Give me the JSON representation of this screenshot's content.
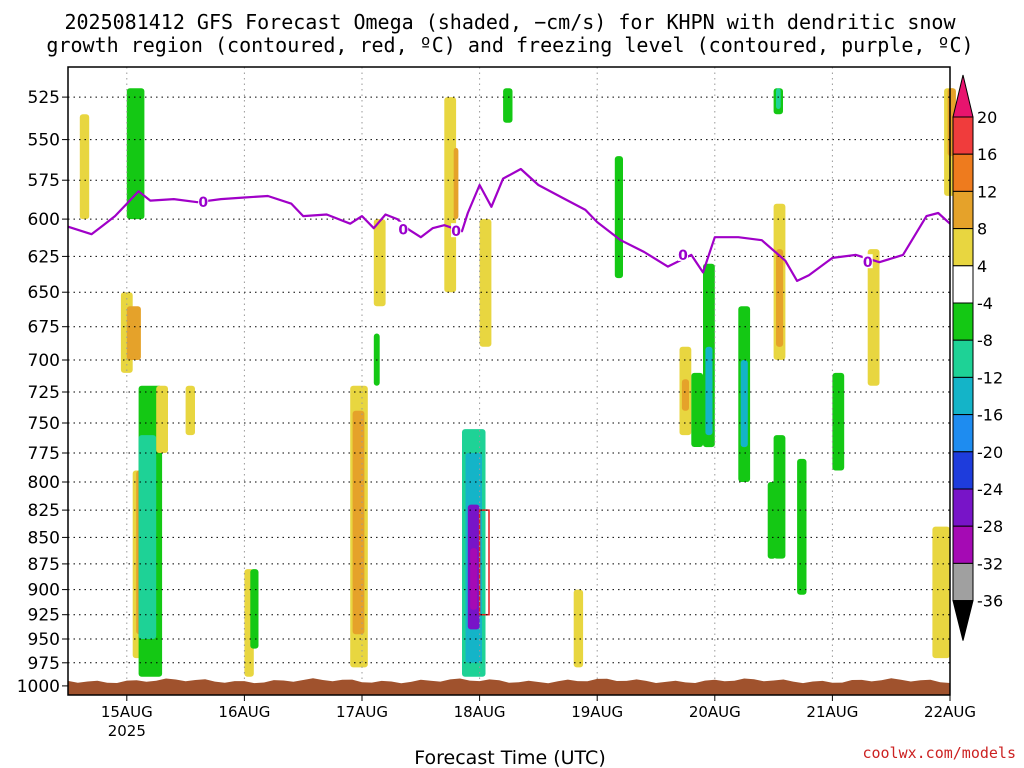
{
  "chart_data": {
    "type": "heatmap",
    "title": {
      "line1": "2025081412 GFS Forecast Omega (shaded, −cm/s) for KHPN with dendritic snow",
      "line2": "growth region (contoured, red, ºC) and freezing level (contoured, purple, ºC)"
    },
    "xlabel": "Forecast Time (UTC)",
    "credit": "coolwx.com/models",
    "x_ticks": [
      "15AUG",
      "16AUG",
      "17AUG",
      "18AUG",
      "19AUG",
      "20AUG",
      "21AUG",
      "22AUG"
    ],
    "x_year": "2025",
    "y_ticks": [
      "525",
      "550",
      "575",
      "600",
      "625",
      "650",
      "675",
      "700",
      "725",
      "750",
      "775",
      "800",
      "825",
      "850",
      "875",
      "900",
      "925",
      "950",
      "975",
      "1000"
    ],
    "y_unit": "hPa",
    "grid": true,
    "colorbar": {
      "labels": [
        "20",
        "16",
        "12",
        "8",
        "4",
        "-4",
        "-8",
        "-12",
        "-16",
        "-20",
        "-24",
        "-28",
        "-32",
        "-36"
      ],
      "colors": [
        "#e8146e",
        "#f03c3c",
        "#ee7b1e",
        "#e5a22a",
        "#e8d640",
        "#ffffff",
        "#14c814",
        "#1ed296",
        "#14b4c8",
        "#1e8cf0",
        "#1e3cdc",
        "#7814c8",
        "#a50ab4",
        "#a0a0a0",
        "#000000"
      ]
    },
    "freezing_level": {
      "label": "0",
      "color": "#a000c8",
      "points": [
        [
          14.5,
          605
        ],
        [
          14.7,
          610
        ],
        [
          14.8,
          604
        ],
        [
          14.9,
          598
        ],
        [
          15.0,
          590
        ],
        [
          15.1,
          582
        ],
        [
          15.2,
          588
        ],
        [
          15.4,
          587
        ],
        [
          15.6,
          589
        ],
        [
          15.8,
          587
        ],
        [
          16.0,
          586
        ],
        [
          16.2,
          585
        ],
        [
          16.4,
          590
        ],
        [
          16.5,
          598
        ],
        [
          16.7,
          597
        ],
        [
          16.9,
          603
        ],
        [
          17.0,
          598
        ],
        [
          17.1,
          606
        ],
        [
          17.2,
          597
        ],
        [
          17.3,
          600
        ],
        [
          17.4,
          607
        ],
        [
          17.5,
          612
        ],
        [
          17.6,
          606
        ],
        [
          17.7,
          604
        ],
        [
          17.85,
          608
        ],
        [
          17.9,
          596
        ],
        [
          18.0,
          578
        ],
        [
          18.1,
          592
        ],
        [
          18.2,
          574
        ],
        [
          18.35,
          568
        ],
        [
          18.5,
          578
        ],
        [
          18.7,
          586
        ],
        [
          18.9,
          594
        ],
        [
          19.0,
          602
        ],
        [
          19.2,
          614
        ],
        [
          19.4,
          622
        ],
        [
          19.6,
          632
        ],
        [
          19.8,
          624
        ],
        [
          19.9,
          636
        ],
        [
          20.0,
          612
        ],
        [
          20.2,
          612
        ],
        [
          20.4,
          614
        ],
        [
          20.6,
          628
        ],
        [
          20.7,
          642
        ],
        [
          20.8,
          638
        ],
        [
          21.0,
          626
        ],
        [
          21.2,
          624
        ],
        [
          21.4,
          629
        ],
        [
          21.6,
          624
        ],
        [
          21.8,
          598
        ],
        [
          21.9,
          596
        ],
        [
          22.0,
          603
        ]
      ]
    },
    "dendritic_zone": {
      "color": "#e02020",
      "segments": [
        [
          18.0,
          18.08,
          825,
          925
        ]
      ]
    },
    "omega_cells": [
      {
        "t0": 14.6,
        "t1": 14.68,
        "p0": 535,
        "p1": 600,
        "v": 5
      },
      {
        "t0": 14.95,
        "t1": 15.05,
        "p0": 650,
        "p1": 710,
        "v": 6
      },
      {
        "t0": 15.0,
        "t1": 15.12,
        "p0": 660,
        "p1": 700,
        "v": 9
      },
      {
        "t0": 15.0,
        "t1": 15.15,
        "p0": 520,
        "p1": 600,
        "v": -6
      },
      {
        "t0": 15.05,
        "t1": 15.13,
        "p0": 790,
        "p1": 970,
        "v": 6
      },
      {
        "t0": 15.08,
        "t1": 15.2,
        "p0": 790,
        "p1": 945,
        "v": 10
      },
      {
        "t0": 15.1,
        "t1": 15.3,
        "p0": 720,
        "p1": 990,
        "v": -7
      },
      {
        "t0": 15.1,
        "t1": 15.25,
        "p0": 760,
        "p1": 950,
        "v": -11
      },
      {
        "t0": 15.25,
        "t1": 15.35,
        "p0": 720,
        "p1": 775,
        "v": 5
      },
      {
        "t0": 15.5,
        "t1": 15.58,
        "p0": 720,
        "p1": 760,
        "v": 5
      },
      {
        "t0": 16.0,
        "t1": 16.08,
        "p0": 880,
        "p1": 990,
        "v": 5
      },
      {
        "t0": 16.05,
        "t1": 16.12,
        "p0": 880,
        "p1": 960,
        "v": -6
      },
      {
        "t0": 16.9,
        "t1": 17.05,
        "p0": 720,
        "p1": 980,
        "v": 6
      },
      {
        "t0": 16.92,
        "t1": 17.02,
        "p0": 740,
        "p1": 945,
        "v": 10
      },
      {
        "t0": 17.1,
        "t1": 17.15,
        "p0": 680,
        "p1": 720,
        "v": -6
      },
      {
        "t0": 17.1,
        "t1": 17.2,
        "p0": 600,
        "p1": 660,
        "v": 5
      },
      {
        "t0": 17.85,
        "t1": 18.05,
        "p0": 755,
        "p1": 990,
        "v": -8
      },
      {
        "t0": 17.88,
        "t1": 18.02,
        "p0": 775,
        "p1": 975,
        "v": -15
      },
      {
        "t0": 17.9,
        "t1": 18.0,
        "p0": 820,
        "p1": 940,
        "v": -24
      },
      {
        "t0": 17.92,
        "t1": 17.98,
        "p0": 860,
        "p1": 920,
        "v": -30
      },
      {
        "t0": 17.7,
        "t1": 17.8,
        "p0": 525,
        "p1": 650,
        "v": 6
      },
      {
        "t0": 17.78,
        "t1": 17.82,
        "p0": 555,
        "p1": 600,
        "v": 10
      },
      {
        "t0": 18.0,
        "t1": 18.1,
        "p0": 600,
        "p1": 690,
        "v": 5
      },
      {
        "t0": 18.2,
        "t1": 18.28,
        "p0": 520,
        "p1": 540,
        "v": -6
      },
      {
        "t0": 18.8,
        "t1": 18.88,
        "p0": 900,
        "p1": 980,
        "v": 5
      },
      {
        "t0": 19.15,
        "t1": 19.22,
        "p0": 560,
        "p1": 640,
        "v": -6
      },
      {
        "t0": 19.7,
        "t1": 19.8,
        "p0": 690,
        "p1": 760,
        "v": 5
      },
      {
        "t0": 19.72,
        "t1": 19.78,
        "p0": 715,
        "p1": 740,
        "v": 10
      },
      {
        "t0": 19.8,
        "t1": 19.9,
        "p0": 710,
        "p1": 770,
        "v": -6
      },
      {
        "t0": 19.9,
        "t1": 20.0,
        "p0": 630,
        "p1": 770,
        "v": -7
      },
      {
        "t0": 19.92,
        "t1": 19.98,
        "p0": 690,
        "p1": 760,
        "v": -12
      },
      {
        "t0": 20.2,
        "t1": 20.3,
        "p0": 660,
        "p1": 800,
        "v": -7
      },
      {
        "t0": 20.22,
        "t1": 20.28,
        "p0": 700,
        "p1": 770,
        "v": -12
      },
      {
        "t0": 20.5,
        "t1": 20.6,
        "p0": 590,
        "p1": 700,
        "v": 5
      },
      {
        "t0": 20.52,
        "t1": 20.58,
        "p0": 620,
        "p1": 690,
        "v": 9
      },
      {
        "t0": 20.5,
        "t1": 20.58,
        "p0": 520,
        "p1": 535,
        "v": -6
      },
      {
        "t0": 20.52,
        "t1": 20.56,
        "p0": 520,
        "p1": 532,
        "v": -11
      },
      {
        "t0": 20.5,
        "t1": 20.6,
        "p0": 760,
        "p1": 870,
        "v": -7
      },
      {
        "t0": 20.7,
        "t1": 20.78,
        "p0": 780,
        "p1": 905,
        "v": -7
      },
      {
        "t0": 20.45,
        "t1": 20.52,
        "p0": 800,
        "p1": 870,
        "v": -6
      },
      {
        "t0": 21.0,
        "t1": 21.1,
        "p0": 710,
        "p1": 790,
        "v": -7
      },
      {
        "t0": 21.3,
        "t1": 21.4,
        "p0": 620,
        "p1": 720,
        "v": 5
      },
      {
        "t0": 21.85,
        "t1": 22.0,
        "p0": 840,
        "p1": 970,
        "v": 5
      },
      {
        "t0": 21.95,
        "t1": 22.05,
        "p0": 520,
        "p1": 585,
        "v": 6
      },
      {
        "t0": 21.98,
        "t1": 22.05,
        "p0": 520,
        "p1": 560,
        "v": 10
      }
    ]
  }
}
